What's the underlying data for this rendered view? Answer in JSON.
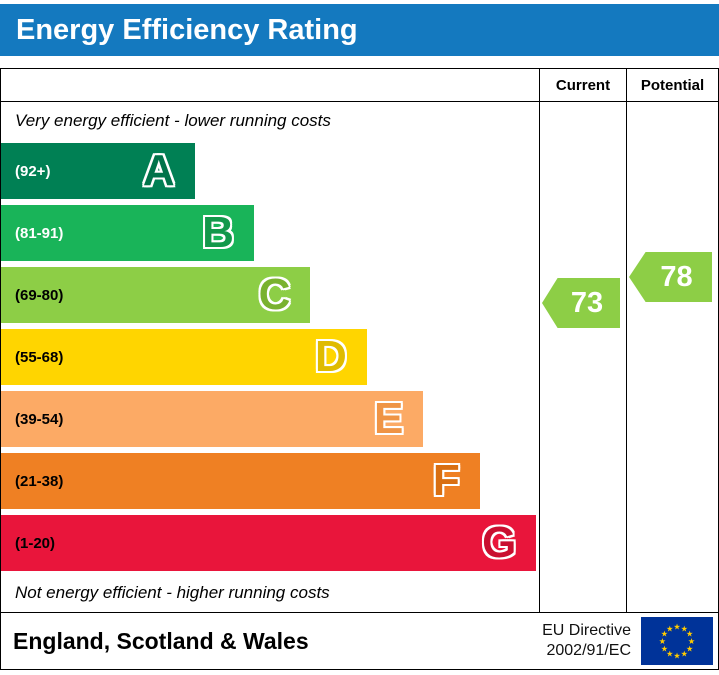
{
  "title": "Energy Efficiency Rating",
  "header": {
    "current": "Current",
    "potential": "Potential"
  },
  "notes": {
    "top": "Very energy efficient - lower running costs",
    "bottom": "Not energy efficient - higher running costs"
  },
  "footer": {
    "region": "England, Scotland & Wales",
    "directive_line1": "EU Directive",
    "directive_line2": "2002/91/EC"
  },
  "colors": {
    "title_bar": "#1479bf",
    "border": "#000000",
    "flag_blue": "#003399",
    "flag_star": "#ffcc00"
  },
  "chart_data": {
    "type": "bar",
    "orientation": "horizontal",
    "title": "Energy Efficiency Rating",
    "bands": [
      {
        "letter": "A",
        "label": "(92+)",
        "min": 92,
        "max": 100,
        "color": "#008054",
        "letter_color": "#00734a",
        "label_color": "#ffffff",
        "width_pct": 36
      },
      {
        "letter": "B",
        "label": "(81-91)",
        "min": 81,
        "max": 91,
        "color": "#19b459",
        "letter_color": "#13984b",
        "label_color": "#ffffff",
        "width_pct": 47
      },
      {
        "letter": "C",
        "label": "(69-80)",
        "min": 69,
        "max": 80,
        "color": "#8dce46",
        "letter_color": "#79b22f",
        "label_color": "#000000",
        "width_pct": 57.5
      },
      {
        "letter": "D",
        "label": "(55-68)",
        "min": 55,
        "max": 68,
        "color": "#ffd500",
        "letter_color": "#dfbb00",
        "label_color": "#000000",
        "width_pct": 68
      },
      {
        "letter": "E",
        "label": "(39-54)",
        "min": 39,
        "max": 54,
        "color": "#fcaa65",
        "letter_color": "#ef9445",
        "label_color": "#000000",
        "width_pct": 78.5
      },
      {
        "letter": "F",
        "label": "(21-38)",
        "min": 21,
        "max": 38,
        "color": "#ef8023",
        "letter_color": "#d96f12",
        "label_color": "#000000",
        "width_pct": 89
      },
      {
        "letter": "G",
        "label": "(1-20)",
        "min": 1,
        "max": 20,
        "color": "#e9153b",
        "letter_color": "#c90f30",
        "label_color": "#000000",
        "width_pct": 99.5
      }
    ],
    "current": {
      "value": 73,
      "color": "#8dce46"
    },
    "potential": {
      "value": 78,
      "color": "#8dce46"
    }
  }
}
